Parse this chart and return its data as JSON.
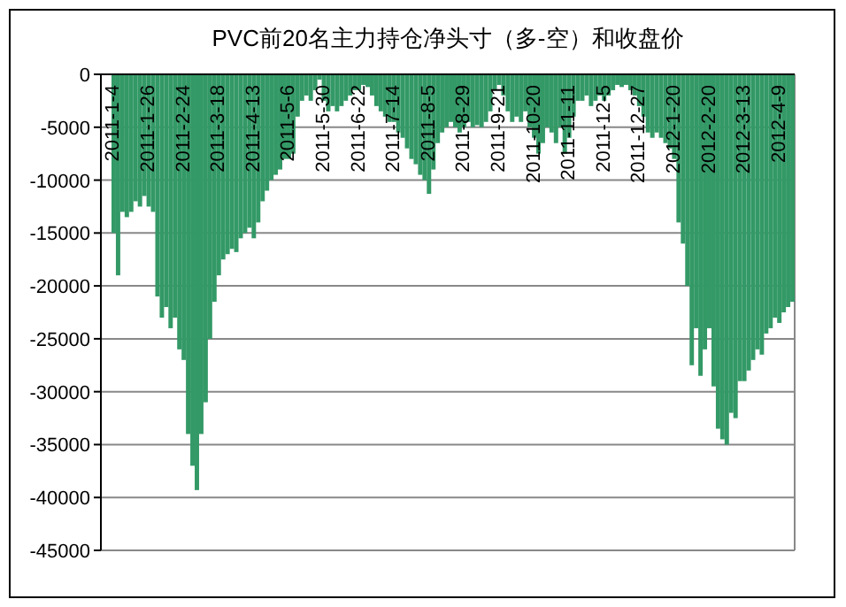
{
  "chart_data": {
    "type": "bar",
    "title": "PVC前20名主力持仓净头寸（多-空）和收盘价",
    "categories": [
      "2011-1-4",
      null,
      null,
      null,
      null,
      null,
      null,
      null,
      "2011-1-26",
      null,
      null,
      null,
      null,
      null,
      null,
      null,
      "2011-2-24",
      null,
      null,
      null,
      null,
      null,
      null,
      null,
      "2011-3-18",
      null,
      null,
      null,
      null,
      null,
      null,
      null,
      "2011-4-13",
      null,
      null,
      null,
      null,
      null,
      null,
      null,
      "2011-5-6",
      null,
      null,
      null,
      null,
      null,
      null,
      null,
      "2011-5-30",
      null,
      null,
      null,
      null,
      null,
      null,
      null,
      "2011-6-22",
      null,
      null,
      null,
      null,
      null,
      null,
      null,
      "2011-7-14",
      null,
      null,
      null,
      null,
      null,
      null,
      null,
      "2011-8-5",
      null,
      null,
      null,
      null,
      null,
      null,
      null,
      "2011-8-29",
      null,
      null,
      null,
      null,
      null,
      null,
      null,
      "2011-9-21",
      null,
      null,
      null,
      null,
      null,
      null,
      null,
      "2011-10-20",
      null,
      null,
      null,
      null,
      null,
      null,
      null,
      "2011-11-11",
      null,
      null,
      null,
      null,
      null,
      null,
      null,
      "2011-12-5",
      null,
      null,
      null,
      null,
      null,
      null,
      null,
      "2011-12-27",
      null,
      null,
      null,
      null,
      null,
      null,
      null,
      "2012-1-20",
      null,
      null,
      null,
      null,
      null,
      null,
      null,
      "2012-2-20",
      null,
      null,
      null,
      null,
      null,
      null,
      null,
      "2012-3-13",
      null,
      null,
      null,
      null,
      null,
      null,
      null,
      "2012-4-9",
      null,
      null,
      null
    ],
    "values": [
      -15000,
      -19000,
      -13000,
      -13500,
      -13000,
      -12000,
      -12500,
      -11500,
      -12500,
      -13000,
      -21000,
      -23000,
      -22000,
      -24000,
      -23000,
      -26000,
      -27000,
      -34000,
      -37000,
      -39300,
      -34000,
      -31000,
      -25000,
      -21500,
      -19000,
      -17500,
      -17000,
      -16500,
      -16800,
      -15500,
      -15000,
      -14500,
      -15500,
      -14000,
      -12000,
      -11000,
      -10000,
      -9500,
      -9000,
      -8000,
      -8000,
      -7500,
      -4000,
      -2500,
      -2000,
      -2500,
      -1500,
      -500,
      -2500,
      -3500,
      -3000,
      -3500,
      -3000,
      -2500,
      -2000,
      -1500,
      -1500,
      -1000,
      -1200,
      -2000,
      -3000,
      -3500,
      -4000,
      -4500,
      -4500,
      -5500,
      -6000,
      -7000,
      -8000,
      -8500,
      -9500,
      -10000,
      -11300,
      -9000,
      -6500,
      -5500,
      -5000,
      -4500,
      -5000,
      -5500,
      -5000,
      -4500,
      -5000,
      -4800,
      -5000,
      -4500,
      -3500,
      -1500,
      -1000,
      -2000,
      -3500,
      -4500,
      -4000,
      -4500,
      -3500,
      -5000,
      -6000,
      -7500,
      -6500,
      -5000,
      -5500,
      -6500,
      -5000,
      -7500,
      -6000,
      -4000,
      -2500,
      -2500,
      -2000,
      -3000,
      -2500,
      -2000,
      -2500,
      -2000,
      -1500,
      -1000,
      -1200,
      -1000,
      -1500,
      -2000,
      -3000,
      -4000,
      -5500,
      -6000,
      -5500,
      -6000,
      -6500,
      -7000,
      -8000,
      -14000,
      -16000,
      -20000,
      -27500,
      -24000,
      -28500,
      -26000,
      -24000,
      -29500,
      -33500,
      -34500,
      -35000,
      -32000,
      -32500,
      -29000,
      -29000,
      -28000,
      -27000,
      -26000,
      -26500,
      -24500,
      -24000,
      -23000,
      -23500,
      -22500,
      -22000,
      -21500
    ],
    "color": "#339966",
    "ylim": [
      -45000,
      0
    ],
    "yticks": [
      0,
      -5000,
      -10000,
      -15000,
      -20000,
      -25000,
      -30000,
      -35000,
      -40000,
      -45000
    ],
    "grid": "y"
  }
}
